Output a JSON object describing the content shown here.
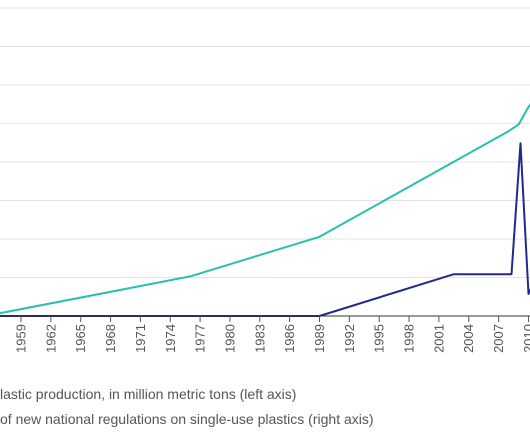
{
  "chart_data": {
    "type": "line",
    "x_ticks": [
      "1959",
      "1962",
      "1965",
      "1968",
      "1971",
      "1974",
      "1977",
      "1980",
      "1983",
      "1986",
      "1989",
      "1992",
      "1995",
      "1998",
      "2001",
      "2004",
      "2007",
      "2010"
    ],
    "series": [
      {
        "name": "lastic production, in million metric tons (left axis)",
        "color": "#2bbfae",
        "x": [
          1956,
          1976,
          1989,
          2008,
          2009,
          2010,
          2010.5,
          2011
        ],
        "y": [
          1,
          36,
          72,
          168,
          174,
          190,
          196,
          200
        ]
      },
      {
        "name": "of new national regulations on single-use plastics (right axis)",
        "color": "#1f2a8a",
        "x": [
          1956,
          1989,
          2002.5,
          2008.3,
          2009.2,
          2010,
          2011
        ],
        "y": [
          0,
          0,
          3.8,
          3.8,
          15.7,
          2,
          4
        ]
      }
    ],
    "y_left": {
      "min": 0,
      "max": 280,
      "gridlines": 8
    },
    "y_right": {
      "min": 0,
      "max": 28
    },
    "grid": true
  },
  "legend": {
    "item1": "lastic production, in million metric tons (left axis)",
    "item2": "of new national regulations on single-use plastics (right axis)"
  }
}
